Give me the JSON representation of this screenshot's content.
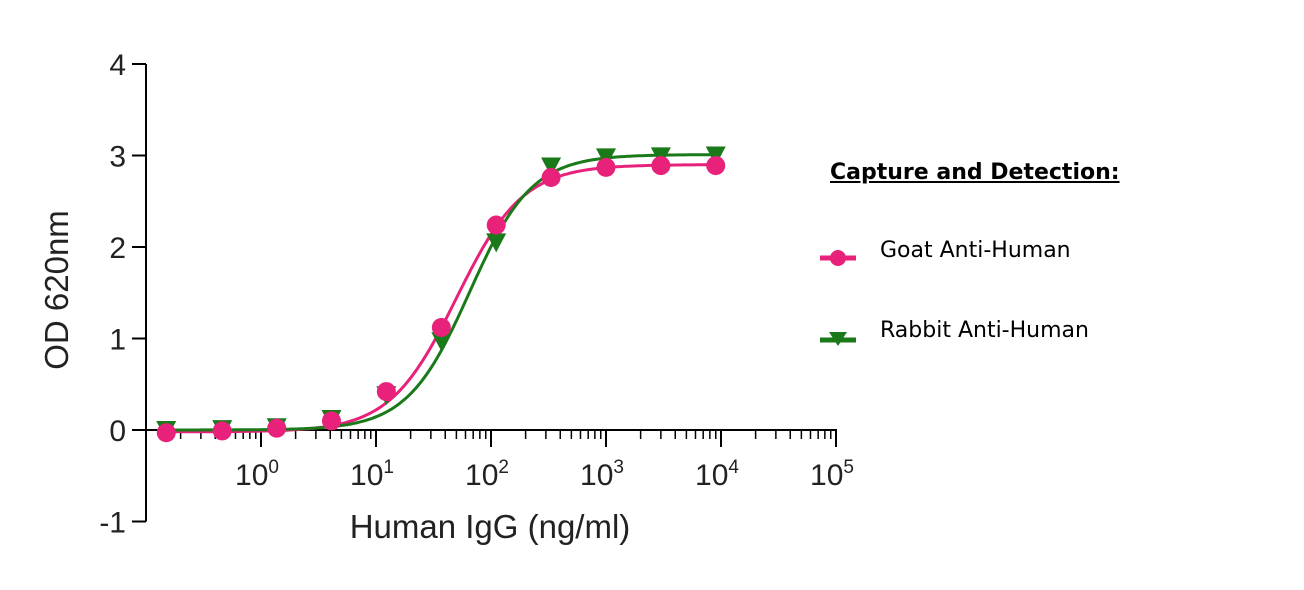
{
  "chart_data": {
    "type": "scatter",
    "xlabel": "Human IgG (ng/ml)",
    "ylabel": "OD 620nm",
    "x_scale": "log10",
    "xlim": [
      0.1,
      100000
    ],
    "ylim": [
      -1,
      4
    ],
    "y_ticks": [
      "-1",
      "0",
      "1",
      "2",
      "3",
      "4"
    ],
    "x_ticks": [
      {
        "base": "10",
        "exp": "0"
      },
      {
        "base": "10",
        "exp": "1"
      },
      {
        "base": "10",
        "exp": "2"
      },
      {
        "base": "10",
        "exp": "3"
      },
      {
        "base": "10",
        "exp": "4"
      },
      {
        "base": "10",
        "exp": "5"
      }
    ],
    "legend": {
      "title": "Capture and Detection:",
      "placement": "right"
    },
    "series": [
      {
        "name": "Goat Anti-Human",
        "color": "#e8217a",
        "marker": "circle",
        "x": [
          0.15,
          0.46,
          1.37,
          4.1,
          12.3,
          37,
          111,
          333,
          1000,
          3000,
          9000
        ],
        "y": [
          -0.03,
          -0.01,
          0.02,
          0.1,
          0.42,
          1.12,
          2.24,
          2.76,
          2.87,
          2.89,
          2.89
        ],
        "fit": {
          "bottom": -0.02,
          "top": 2.9,
          "ec50": 50,
          "hill": 1.5
        }
      },
      {
        "name": "Rabbit Anti-Human",
        "color": "#1a7a1a",
        "marker": "triangle-down",
        "x": [
          0.15,
          0.46,
          1.37,
          4.1,
          12.3,
          37,
          111,
          333,
          1000,
          3000,
          9000
        ],
        "y": [
          0.0,
          0.01,
          0.03,
          0.12,
          0.38,
          0.97,
          2.05,
          2.88,
          2.98,
          2.99,
          3.0
        ],
        "fit": {
          "bottom": 0.0,
          "top": 3.01,
          "ec50": 65,
          "hill": 1.6
        }
      }
    ]
  }
}
